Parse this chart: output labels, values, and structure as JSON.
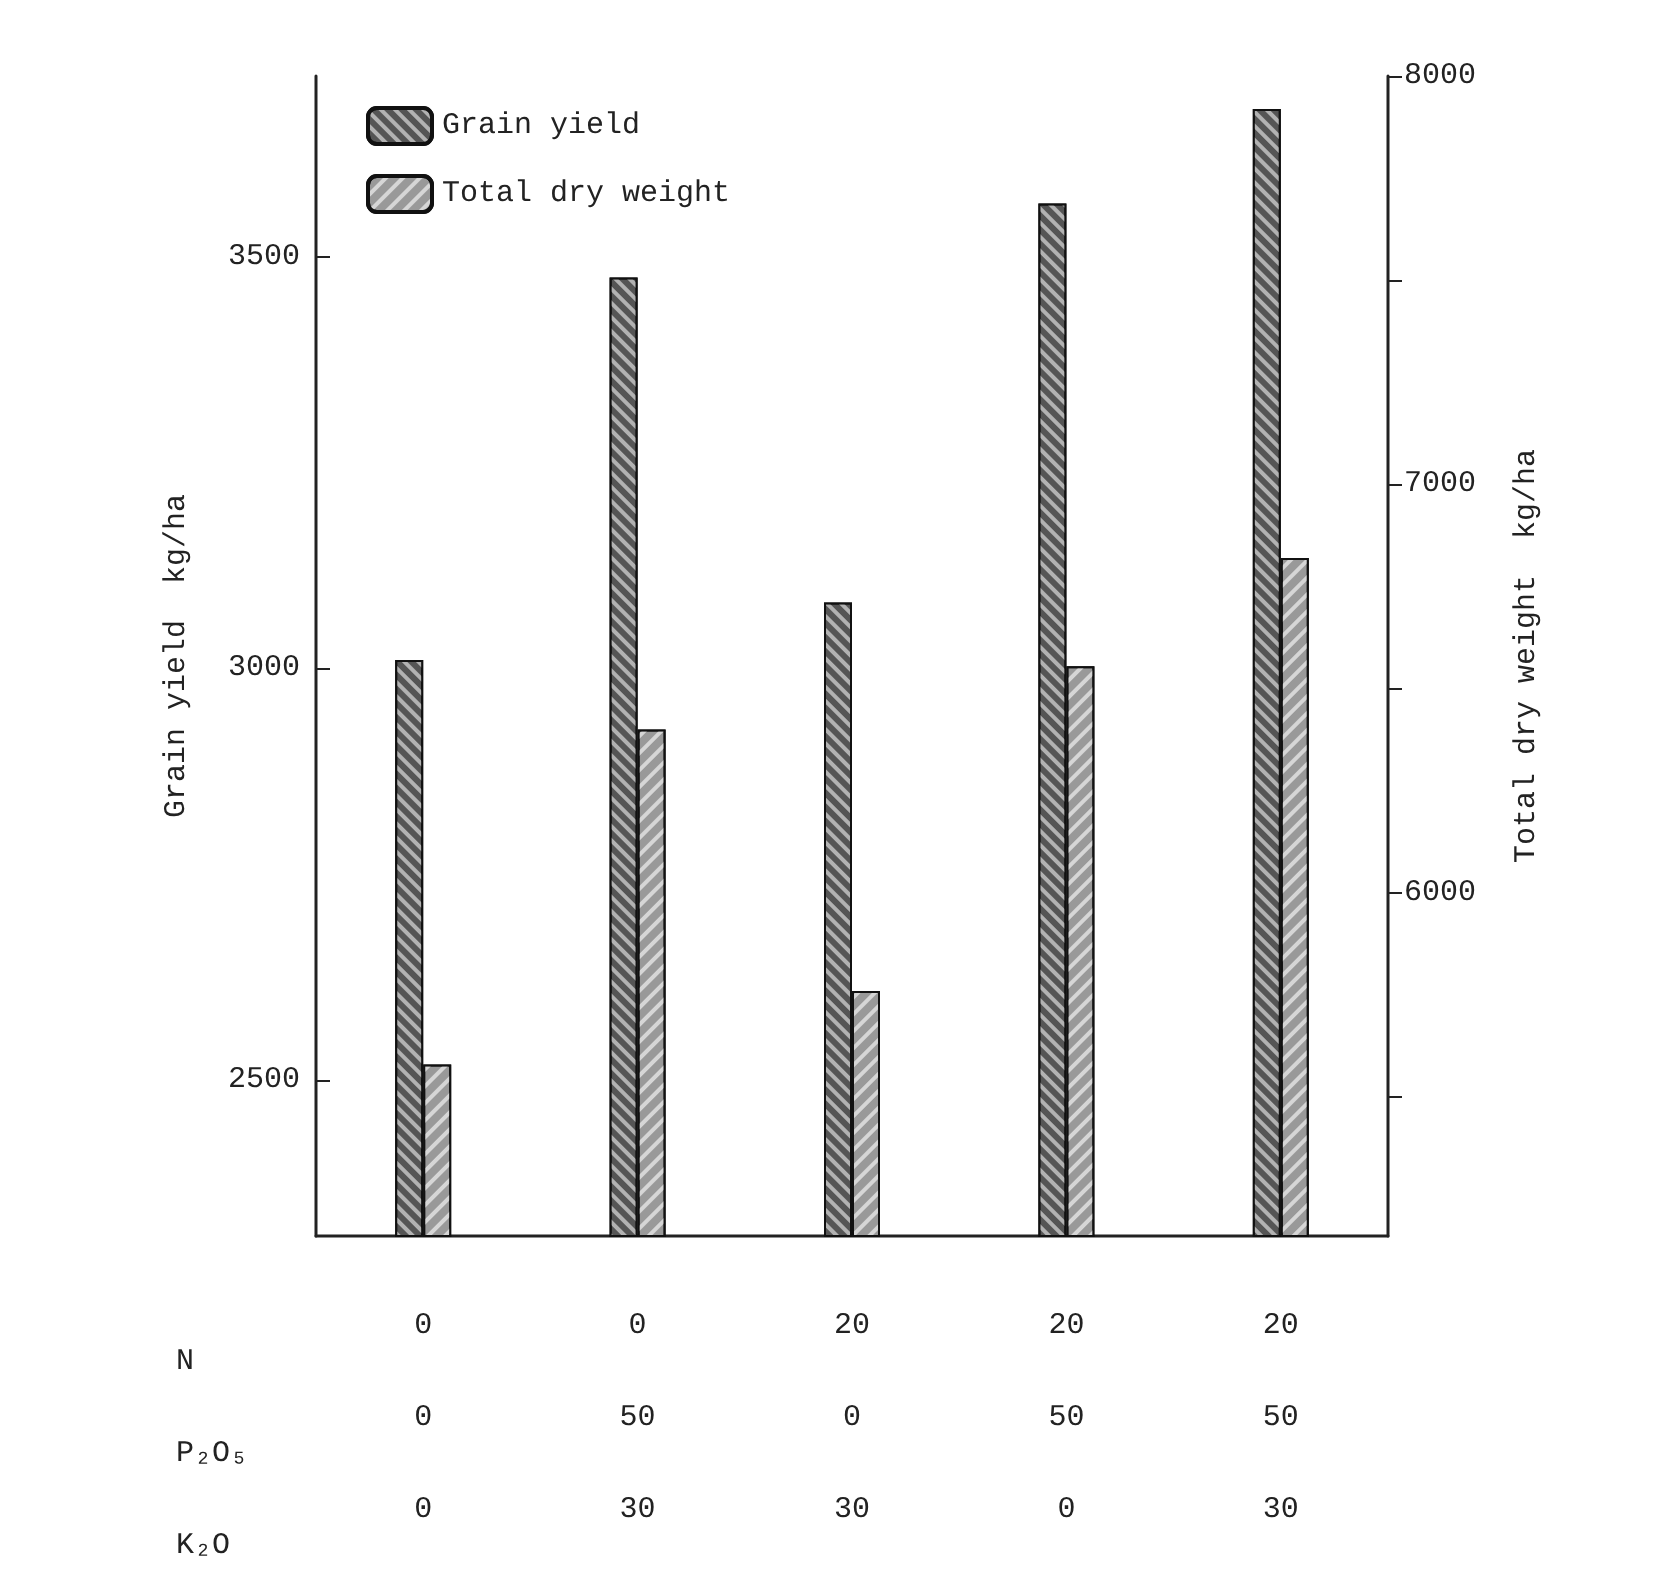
{
  "chart_data": {
    "type": "bar",
    "categories": [
      "0\n0\n0",
      "0\n50\n30",
      "20\n0\n30",
      "20\n50\n0",
      "20\n50\n30"
    ],
    "xlabel": "N\nP₂O₅\nK₂O",
    "ylabel": "Grain yield  kg/ha",
    "y2label": "Total dry weight  kg/ha",
    "series": [
      {
        "name": "Grain yield",
        "color": "#555555",
        "values": [
          3010,
          3475,
          3080,
          3565,
          3680
        ]
      },
      {
        "name": "Total dry weight",
        "color": "#999999",
        "axis": "y2",
        "values": [
          5580,
          6400,
          5760,
          6555,
          6820
        ]
      }
    ],
    "ylim": [
      2310,
      3720
    ],
    "yticks": [
      2500,
      3000,
      3500
    ],
    "y2lim": [
      5160,
      8000
    ],
    "y2ticks": [
      {
        "value": 5500,
        "label": null
      },
      6000,
      {
        "value": 6500,
        "label": null
      },
      7000,
      {
        "value": 7500,
        "label": null
      },
      8000
    ],
    "grid": false,
    "legend": "top left"
  }
}
